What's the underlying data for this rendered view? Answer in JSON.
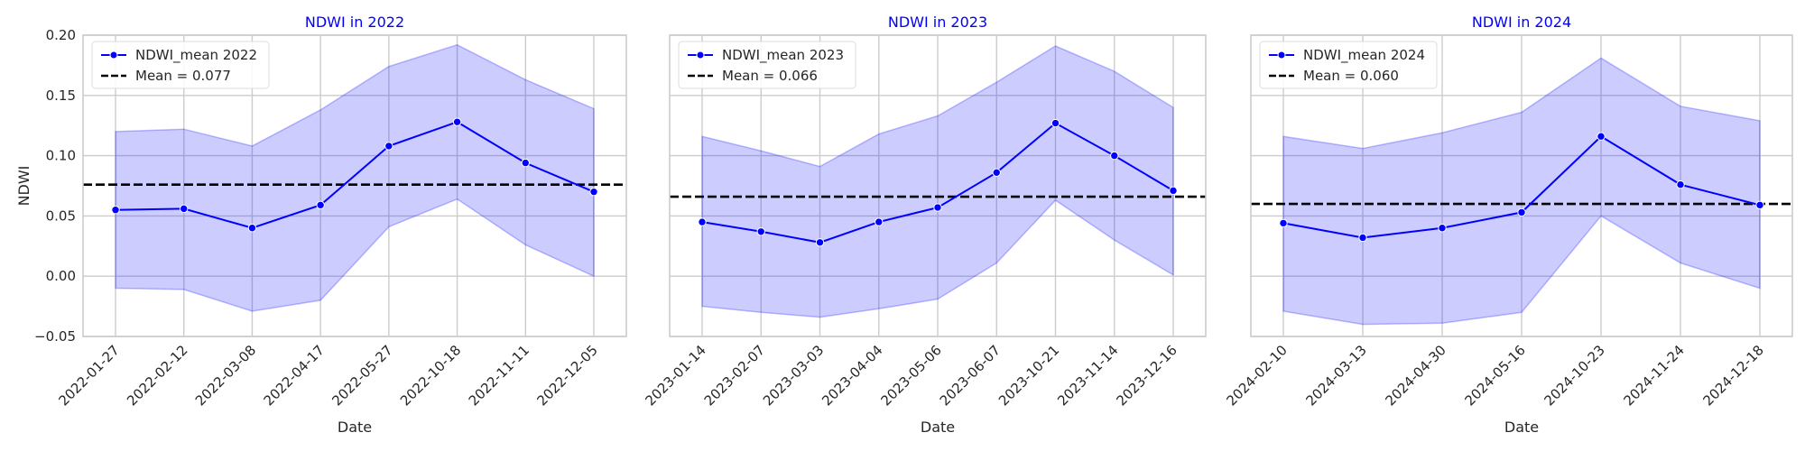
{
  "colors": {
    "line": "#0000ff",
    "band": "#0000ff",
    "mean_line": "#000000",
    "title": "#0000ff",
    "grid": "#cccccc",
    "spine": "#cccccc",
    "text": "#262626"
  },
  "chart_data": [
    {
      "type": "line",
      "title": "NDWI in 2022",
      "xlabel": "Date",
      "ylabel": "NDWI",
      "ylim": [
        -0.05,
        0.2
      ],
      "yticks": [
        "−0.05",
        "0.00",
        "0.05",
        "0.10",
        "0.15",
        "0.20"
      ],
      "grid": true,
      "legend_position": "top-left",
      "categories": [
        "2022-01-27",
        "2022-02-12",
        "2022-03-08",
        "2022-04-17",
        "2022-05-27",
        "2022-10-18",
        "2022-11-11",
        "2022-12-05"
      ],
      "series": [
        {
          "name": "NDWI_mean 2022",
          "values": [
            0.055,
            0.056,
            0.04,
            0.059,
            0.108,
            0.128,
            0.094,
            0.07
          ]
        }
      ],
      "band": {
        "upper": [
          0.12,
          0.122,
          0.108,
          0.138,
          0.174,
          0.192,
          0.163,
          0.139
        ],
        "lower": [
          -0.01,
          -0.011,
          -0.029,
          -0.02,
          0.041,
          0.064,
          0.026,
          0.0
        ]
      },
      "mean_line": {
        "label": "Mean = 0.077",
        "value": 0.076
      }
    },
    {
      "type": "line",
      "title": "NDWI in 2023",
      "xlabel": "Date",
      "ylabel": "",
      "ylim": [
        -0.05,
        0.2
      ],
      "yticks": [],
      "grid": true,
      "legend_position": "top-left",
      "categories": [
        "2023-01-14",
        "2023-02-07",
        "2023-03-03",
        "2023-04-04",
        "2023-05-06",
        "2023-06-07",
        "2023-10-21",
        "2023-11-14",
        "2023-12-16"
      ],
      "series": [
        {
          "name": "NDWI_mean 2023",
          "values": [
            0.045,
            0.037,
            0.028,
            0.045,
            0.057,
            0.086,
            0.127,
            0.1,
            0.071
          ]
        }
      ],
      "band": {
        "upper": [
          0.116,
          0.104,
          0.091,
          0.118,
          0.133,
          0.161,
          0.191,
          0.17,
          0.14
        ],
        "lower": [
          -0.025,
          -0.03,
          -0.034,
          -0.027,
          -0.019,
          0.011,
          0.063,
          0.03,
          0.001
        ]
      },
      "mean_line": {
        "label": "Mean = 0.066",
        "value": 0.066
      }
    },
    {
      "type": "line",
      "title": "NDWI in 2024",
      "xlabel": "Date",
      "ylabel": "",
      "ylim": [
        -0.05,
        0.2
      ],
      "yticks": [],
      "grid": true,
      "legend_position": "top-left",
      "categories": [
        "2024-02-10",
        "2024-03-13",
        "2024-04-30",
        "2024-05-16",
        "2024-10-23",
        "2024-11-24",
        "2024-12-18"
      ],
      "series": [
        {
          "name": "NDWI_mean 2024",
          "values": [
            0.044,
            0.032,
            0.04,
            0.053,
            0.116,
            0.076,
            0.059
          ]
        }
      ],
      "band": {
        "upper": [
          0.116,
          0.106,
          0.119,
          0.136,
          0.181,
          0.141,
          0.129
        ],
        "lower": [
          -0.029,
          -0.04,
          -0.039,
          -0.03,
          0.05,
          0.011,
          -0.01
        ]
      },
      "mean_line": {
        "label": "Mean = 0.060",
        "value": 0.06
      }
    }
  ]
}
